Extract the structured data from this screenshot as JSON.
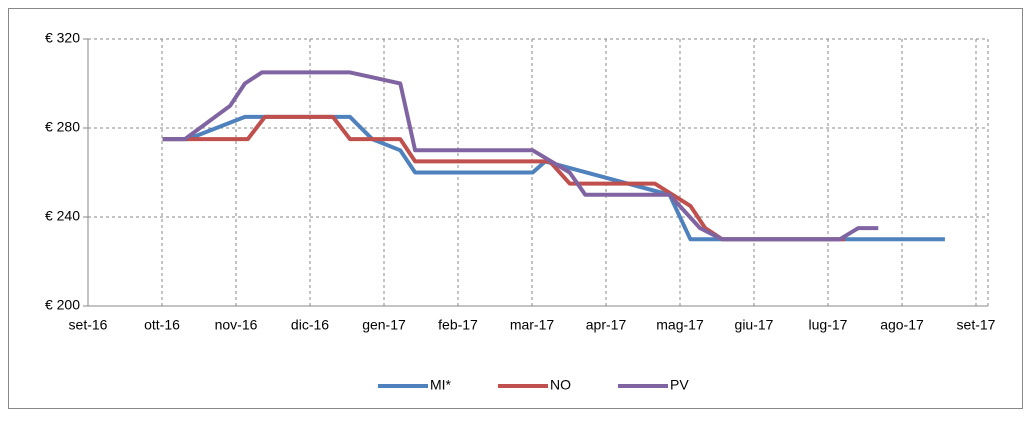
{
  "chart_data": {
    "type": "line",
    "series": [
      {
        "name": "MI*",
        "color": "#4f81bd",
        "x": [
          1.01,
          1.35,
          2.12,
          3.54,
          3.84,
          4.22,
          4.42,
          6.01,
          6.18,
          7.86,
          8.14,
          11.58
        ],
        "values": [
          275,
          275,
          285,
          285,
          275,
          270,
          260,
          260,
          265,
          250,
          230,
          230
        ]
      },
      {
        "name": "NO",
        "color": "#c0504d",
        "x": [
          1.01,
          2.16,
          2.39,
          3.31,
          3.54,
          4.22,
          4.42,
          6.24,
          6.51,
          7.66,
          8.14,
          8.34,
          8.57,
          10.23
        ],
        "values": [
          275,
          275,
          285,
          285,
          275,
          275,
          265,
          265,
          255,
          255,
          245,
          235,
          230,
          230
        ]
      },
      {
        "name": "PV",
        "color": "#8064a2",
        "x": [
          1.01,
          1.31,
          1.92,
          2.12,
          2.35,
          3.54,
          4.22,
          4.42,
          6.01,
          6.51,
          6.72,
          7.86,
          8.27,
          8.57,
          10.16,
          10.41,
          10.68
        ],
        "values": [
          275,
          275,
          290,
          300,
          305,
          305,
          300,
          270,
          270,
          260,
          250,
          250,
          235,
          230,
          230,
          235,
          235
        ]
      }
    ],
    "xlim": [
      0,
      12
    ],
    "xticks": [
      {
        "value": 0,
        "label": "set-16"
      },
      {
        "value": 1,
        "label": "ott-16"
      },
      {
        "value": 2,
        "label": "nov-16"
      },
      {
        "value": 3,
        "label": "dic-16"
      },
      {
        "value": 4,
        "label": "gen-17"
      },
      {
        "value": 5,
        "label": "feb-17"
      },
      {
        "value": 6,
        "label": "mar-17"
      },
      {
        "value": 7,
        "label": "apr-17"
      },
      {
        "value": 8,
        "label": "mag-17"
      },
      {
        "value": 9,
        "label": "giu-17"
      },
      {
        "value": 10,
        "label": "lug-17"
      },
      {
        "value": 11,
        "label": "ago-17"
      },
      {
        "value": 12,
        "label": "set-17"
      }
    ],
    "ylim": [
      200,
      320
    ],
    "yticks": [
      {
        "value": 200,
        "label": "€ 200"
      },
      {
        "value": 240,
        "label": "€ 240"
      },
      {
        "value": 280,
        "label": "€ 280"
      },
      {
        "value": 320,
        "label": "€ 320"
      }
    ],
    "grid": true,
    "legend": "bottom"
  }
}
